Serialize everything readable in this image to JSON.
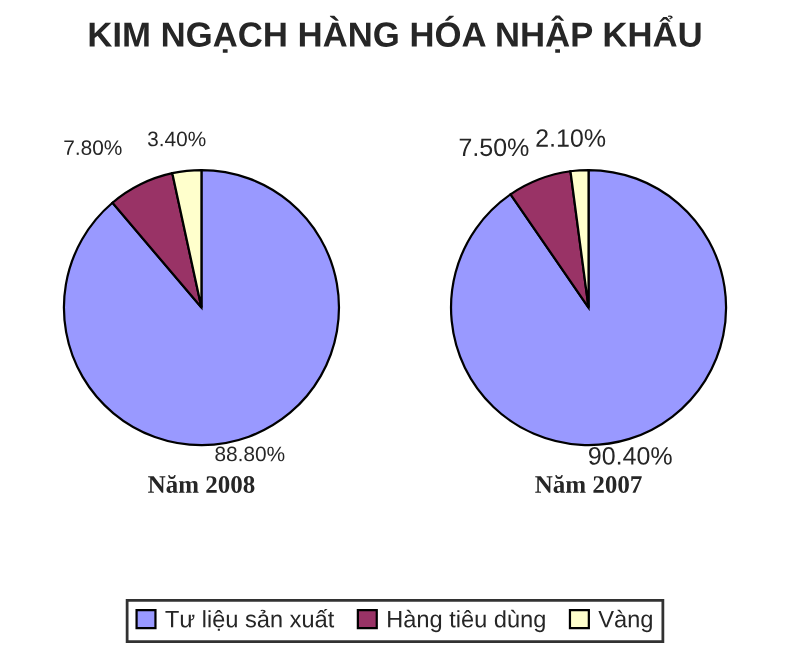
{
  "chart_data": [
    {
      "type": "pie",
      "title": "KIM NGẠCH HÀNG HÓA NHẬP KHẨU",
      "xlabel": "Năm 2008",
      "categories": [
        "Tư liệu sản xuất",
        "Hàng tiêu dùng",
        "Vàng"
      ],
      "values": [
        88.8,
        7.8,
        3.4
      ],
      "colors": [
        "#9999ff",
        "#993366",
        "#ffffcc"
      ],
      "value_labels": [
        "88.80%",
        "7.80%",
        "3.40%"
      ],
      "legend": "bottom"
    },
    {
      "type": "pie",
      "xlabel": "Năm 2007",
      "values": [
        90.4,
        7.5,
        2.1
      ],
      "colors": [
        "#9999ff",
        "#993366",
        "#ffffcc"
      ],
      "value_labels": [
        "90.40%",
        "7.50%",
        "2.10%"
      ]
    }
  ]
}
